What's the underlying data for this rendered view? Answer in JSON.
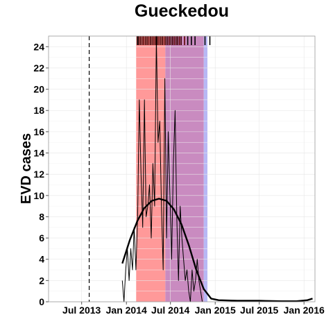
{
  "chart_data": {
    "type": "line",
    "title": "Gueckedou",
    "xlabel": "",
    "ylabel": "EVD cases",
    "xlim": [
      "2013-02-15",
      "2016-02-15"
    ],
    "ylim": [
      0,
      25
    ],
    "yticks": [
      0,
      2,
      4,
      6,
      8,
      10,
      12,
      14,
      16,
      18,
      20,
      22,
      24
    ],
    "xticks": [
      {
        "date": "2013-07-01",
        "label": "Jul 2013"
      },
      {
        "date": "2014-01-01",
        "label": "Jan 2014"
      },
      {
        "date": "2014-07-01",
        "label": "Jul 2014"
      },
      {
        "date": "2015-01-01",
        "label": "Jan 2015"
      },
      {
        "date": "2015-07-01",
        "label": "Jul 2015"
      },
      {
        "date": "2016-01-01",
        "label": "Jan 2016"
      }
    ],
    "grid": true,
    "vline": {
      "date": "2013-08-01",
      "style": "dashed"
    },
    "shaded_regions": [
      {
        "start": "2014-02-10",
        "end": "2014-06-10",
        "color": "#ff9999"
      },
      {
        "start": "2014-06-10",
        "end": "2014-11-15",
        "color": "#c98bc0"
      },
      {
        "start": "2014-11-15",
        "end": "2014-11-30",
        "color": "#b8b8f5"
      }
    ],
    "series": [
      {
        "style": "thin",
        "color": "#000000",
        "points": [
          [
            "2013-12-15",
            2
          ],
          [
            "2013-12-22",
            0
          ],
          [
            "2013-12-29",
            3
          ],
          [
            "2014-01-05",
            5
          ],
          [
            "2014-01-12",
            2
          ],
          [
            "2014-01-19",
            5
          ],
          [
            "2014-01-26",
            3
          ],
          [
            "2014-02-02",
            7
          ],
          [
            "2014-02-09",
            3
          ],
          [
            "2014-02-16",
            8
          ],
          [
            "2014-02-23",
            19
          ],
          [
            "2014-03-02",
            12
          ],
          [
            "2014-03-09",
            7
          ],
          [
            "2014-03-16",
            19
          ],
          [
            "2014-03-23",
            8
          ],
          [
            "2014-03-30",
            9
          ],
          [
            "2014-04-06",
            11
          ],
          [
            "2014-04-13",
            6
          ],
          [
            "2014-04-20",
            13
          ],
          [
            "2014-04-27",
            9
          ],
          [
            "2014-05-04",
            25
          ],
          [
            "2014-05-11",
            15
          ],
          [
            "2014-05-18",
            17
          ],
          [
            "2014-05-25",
            9
          ],
          [
            "2014-06-01",
            3
          ],
          [
            "2014-06-08",
            21
          ],
          [
            "2014-06-15",
            6
          ],
          [
            "2014-06-22",
            16
          ],
          [
            "2014-06-29",
            10
          ],
          [
            "2014-07-06",
            4
          ],
          [
            "2014-07-13",
            13
          ],
          [
            "2014-07-20",
            18
          ],
          [
            "2014-07-27",
            8
          ],
          [
            "2014-08-03",
            2
          ],
          [
            "2014-08-10",
            9
          ],
          [
            "2014-08-17",
            6
          ],
          [
            "2014-08-24",
            4
          ],
          [
            "2014-08-31",
            2
          ],
          [
            "2014-09-07",
            3
          ],
          [
            "2014-09-14",
            1
          ],
          [
            "2014-09-21",
            0
          ],
          [
            "2014-09-28",
            3
          ],
          [
            "2014-10-05",
            1
          ],
          [
            "2014-10-12",
            2
          ],
          [
            "2014-10-19",
            4
          ],
          [
            "2014-10-26",
            2
          ],
          [
            "2014-11-02",
            1
          ],
          [
            "2014-11-09",
            0
          ]
        ]
      },
      {
        "style": "thick",
        "color": "#000000",
        "points": [
          [
            "2013-12-15",
            3.6
          ],
          [
            "2014-01-15",
            5.8
          ],
          [
            "2014-02-15",
            7.6
          ],
          [
            "2014-03-15",
            8.8
          ],
          [
            "2014-04-15",
            9.5
          ],
          [
            "2014-05-15",
            9.7
          ],
          [
            "2014-06-15",
            9.5
          ],
          [
            "2014-07-15",
            8.7
          ],
          [
            "2014-08-15",
            7.3
          ],
          [
            "2014-09-15",
            5.3
          ],
          [
            "2014-10-15",
            3.0
          ],
          [
            "2014-11-15",
            1.2
          ],
          [
            "2014-12-15",
            0.3
          ],
          [
            "2015-01-15",
            0.15
          ],
          [
            "2015-04-01",
            0.1
          ],
          [
            "2015-07-01",
            0.1
          ],
          [
            "2015-10-01",
            0.05
          ],
          [
            "2015-12-01",
            0.05
          ],
          [
            "2016-01-15",
            0.15
          ],
          [
            "2016-02-05",
            0.3
          ]
        ]
      }
    ],
    "rug": [
      {
        "date": "2014-02-15",
        "color": "#000000"
      },
      {
        "date": "2014-02-20",
        "color": "#3a0000"
      },
      {
        "date": "2014-02-27",
        "color": "#3a0000"
      },
      {
        "date": "2014-03-06",
        "color": "#3a0000"
      },
      {
        "date": "2014-03-13",
        "color": "#5a0000"
      },
      {
        "date": "2014-03-20",
        "color": "#3a0000"
      },
      {
        "date": "2014-03-27",
        "color": "#3a0000"
      },
      {
        "date": "2014-04-03",
        "color": "#5a0000"
      },
      {
        "date": "2014-04-10",
        "color": "#3a0000"
      },
      {
        "date": "2014-04-17",
        "color": "#3a0000"
      },
      {
        "date": "2014-04-24",
        "color": "#5a0000"
      },
      {
        "date": "2014-05-01",
        "color": "#3a0000"
      },
      {
        "date": "2014-05-08",
        "color": "#3a0000"
      },
      {
        "date": "2014-05-15",
        "color": "#5a0000"
      },
      {
        "date": "2014-05-22",
        "color": "#3a0000"
      },
      {
        "date": "2014-05-29",
        "color": "#3a0000"
      },
      {
        "date": "2014-06-05",
        "color": "#5a0000"
      },
      {
        "date": "2014-06-12",
        "color": "#3a0000"
      },
      {
        "date": "2014-06-19",
        "color": "#3a0000"
      },
      {
        "date": "2014-06-26",
        "color": "#5a0000"
      },
      {
        "date": "2014-07-03",
        "color": "#3a0000"
      },
      {
        "date": "2014-07-10",
        "color": "#3a0000"
      },
      {
        "date": "2014-07-17",
        "color": "#5a0000"
      },
      {
        "date": "2014-07-24",
        "color": "#3a0000"
      },
      {
        "date": "2014-07-31",
        "color": "#3a0000"
      },
      {
        "date": "2014-08-07",
        "color": "#5a0000"
      },
      {
        "date": "2014-08-14",
        "color": "#3a0000"
      },
      {
        "date": "2014-08-28",
        "color": "#5a0000"
      },
      {
        "date": "2014-09-10",
        "color": "#000000"
      },
      {
        "date": "2014-09-25",
        "color": "#000000"
      },
      {
        "date": "2014-10-10",
        "color": "#000000"
      },
      {
        "date": "2014-11-20",
        "color": "#000000"
      },
      {
        "date": "2014-12-10",
        "color": "#000000"
      }
    ]
  }
}
